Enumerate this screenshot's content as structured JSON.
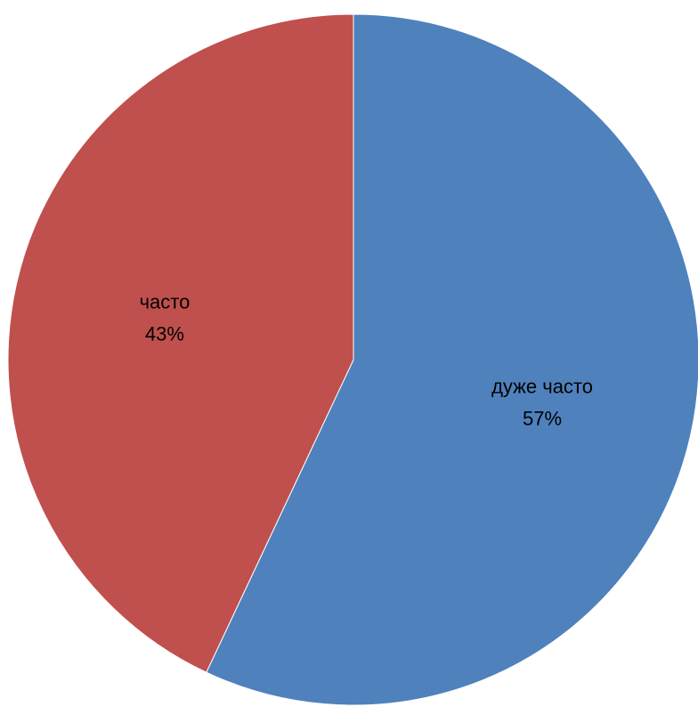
{
  "chart_data": {
    "type": "pie",
    "title": "",
    "slices": [
      {
        "label": "дуже часто",
        "value": 57,
        "value_label": "57%",
        "color": "#4F81BD"
      },
      {
        "label": "часто",
        "value": 43,
        "value_label": "43%",
        "color": "#C0504D"
      }
    ],
    "legend": "none",
    "labels_inside": true
  }
}
